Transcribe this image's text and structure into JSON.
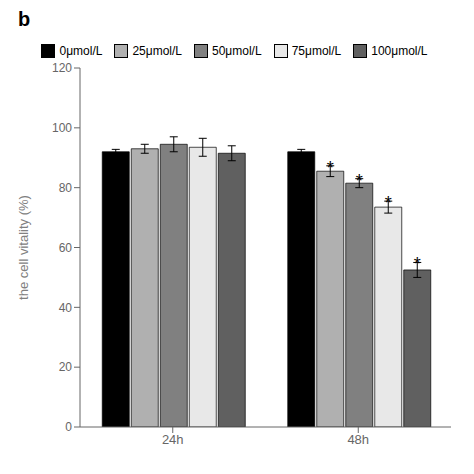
{
  "chart_data": {
    "type": "bar",
    "title": "b",
    "ylabel": "the cell vitality  (%)",
    "categories": [
      "24h",
      "48h"
    ],
    "series": [
      {
        "name": "0μmol/L",
        "color": "#000000",
        "values": [
          92.0,
          92.0
        ],
        "errors": [
          0.8,
          0.8
        ]
      },
      {
        "name": "25μmol/L",
        "color": "#b0b0b0",
        "values": [
          93.0,
          85.5
        ],
        "errors": [
          1.5,
          1.8
        ]
      },
      {
        "name": "50μmol/L",
        "color": "#808080",
        "values": [
          94.5,
          81.5
        ],
        "errors": [
          2.5,
          1.5
        ]
      },
      {
        "name": "75μmol/L",
        "color": "#e8e8e8",
        "values": [
          93.5,
          73.5
        ],
        "errors": [
          3.0,
          2.0
        ]
      },
      {
        "name": "100μmol/L",
        "color": "#606060",
        "values": [
          91.5,
          52.5
        ],
        "errors": [
          2.5,
          2.5
        ]
      }
    ],
    "annotations": [
      {
        "category": "48h",
        "series": "25μmol/L",
        "text": "*"
      },
      {
        "category": "48h",
        "series": "50μmol/L",
        "text": "*"
      },
      {
        "category": "48h",
        "series": "75μmol/L",
        "text": "*"
      },
      {
        "category": "48h",
        "series": "100μmol/L",
        "text": "*"
      }
    ],
    "ylim": [
      0,
      120
    ],
    "yticks": [
      0,
      20,
      40,
      60,
      80,
      100,
      120
    ],
    "grid": false,
    "legend": "top"
  }
}
